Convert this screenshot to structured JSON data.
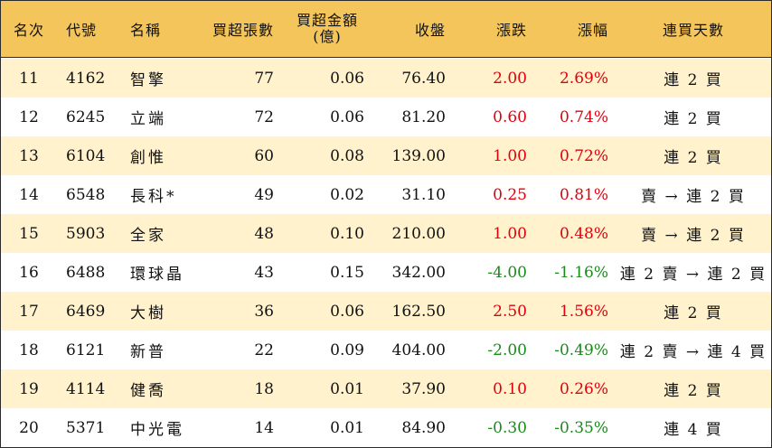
{
  "header": {
    "rank": "名次",
    "code": "代號",
    "name": "名稱",
    "net_lots": "買超張數",
    "net_amount_line1": "買超金額",
    "net_amount_line2": "(億)",
    "close": "收盤",
    "change": "漲跌",
    "change_pct": "漲幅",
    "consecutive_days": "連買天數"
  },
  "rows": [
    {
      "rank": "11",
      "code": "4162",
      "name": "智擎",
      "net_lots": "77",
      "net_amount": "0.06",
      "close": "76.40",
      "change": "2.00",
      "change_pct": "2.69%",
      "streak": "連 2 買",
      "direction": "up"
    },
    {
      "rank": "12",
      "code": "6245",
      "name": "立端",
      "net_lots": "72",
      "net_amount": "0.06",
      "close": "81.20",
      "change": "0.60",
      "change_pct": "0.74%",
      "streak": "連 2 買",
      "direction": "up"
    },
    {
      "rank": "13",
      "code": "6104",
      "name": "創惟",
      "net_lots": "60",
      "net_amount": "0.08",
      "close": "139.00",
      "change": "1.00",
      "change_pct": "0.72%",
      "streak": "連 2 買",
      "direction": "up"
    },
    {
      "rank": "14",
      "code": "6548",
      "name": "長科*",
      "net_lots": "49",
      "net_amount": "0.02",
      "close": "31.10",
      "change": "0.25",
      "change_pct": "0.81%",
      "streak": "賣 → 連 2 買",
      "direction": "up"
    },
    {
      "rank": "15",
      "code": "5903",
      "name": "全家",
      "net_lots": "48",
      "net_amount": "0.10",
      "close": "210.00",
      "change": "1.00",
      "change_pct": "0.48%",
      "streak": "賣 → 連 2 買",
      "direction": "up"
    },
    {
      "rank": "16",
      "code": "6488",
      "name": "環球晶",
      "net_lots": "43",
      "net_amount": "0.15",
      "close": "342.00",
      "change": "-4.00",
      "change_pct": "-1.16%",
      "streak": "連 2 賣 → 連 2 買",
      "direction": "down"
    },
    {
      "rank": "17",
      "code": "6469",
      "name": "大樹",
      "net_lots": "36",
      "net_amount": "0.06",
      "close": "162.50",
      "change": "2.50",
      "change_pct": "1.56%",
      "streak": "連 2 買",
      "direction": "up"
    },
    {
      "rank": "18",
      "code": "6121",
      "name": "新普",
      "net_lots": "22",
      "net_amount": "0.09",
      "close": "404.00",
      "change": "-2.00",
      "change_pct": "-0.49%",
      "streak": "連 2 賣 → 連 4 買",
      "direction": "down"
    },
    {
      "rank": "19",
      "code": "4114",
      "name": "健喬",
      "net_lots": "18",
      "net_amount": "0.01",
      "close": "37.90",
      "change": "0.10",
      "change_pct": "0.26%",
      "streak": "連 2 買",
      "direction": "up"
    },
    {
      "rank": "20",
      "code": "5371",
      "name": "中光電",
      "net_lots": "14",
      "net_amount": "0.01",
      "close": "84.90",
      "change": "-0.30",
      "change_pct": "-0.35%",
      "streak": "連 4 買",
      "direction": "down"
    }
  ],
  "colors": {
    "header_bg": "#f4c55a",
    "alt_row_bg": "#fff2cc",
    "up": "#e0000e",
    "down": "#1a8a1a"
  }
}
